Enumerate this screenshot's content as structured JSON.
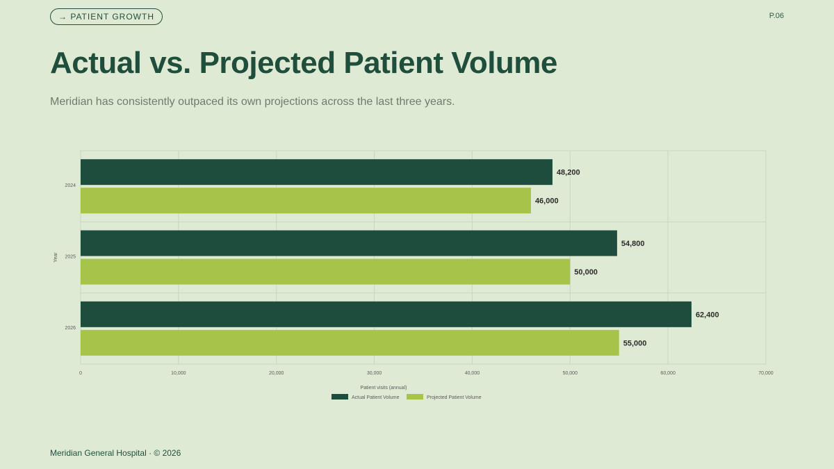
{
  "header": {
    "section_tag": "→ PATIENT GROWTH",
    "page_number": "P.06",
    "title": "Actual vs. Projected Patient Volume",
    "subtitle": "Meridian has consistently outpaced its own projections across the last three years."
  },
  "footer": {
    "text": "Meridian General Hospital · © 2026"
  },
  "colors": {
    "actual": "#1e4d3d",
    "projected": "#a6c44a",
    "grid": "#c9d6bf",
    "axis_text": "#5a5a5a",
    "label_text": "#2b2b2b"
  },
  "chart_data": {
    "type": "bar",
    "orientation": "horizontal",
    "categories": [
      "2024",
      "2025",
      "2026"
    ],
    "series": [
      {
        "name": "Actual Patient Volume",
        "values": [
          48200,
          54800,
          62400
        ],
        "labels": [
          "48,200",
          "54,800",
          "62,400"
        ]
      },
      {
        "name": "Projected Patient Volume",
        "values": [
          46000,
          50000,
          55000
        ],
        "labels": [
          "46,000",
          "50,000",
          "55,000"
        ]
      }
    ],
    "xlabel": "Patient visits (annual)",
    "ylabel": "Year",
    "xlim": [
      0,
      70000
    ],
    "xticks": [
      0,
      10000,
      20000,
      30000,
      40000,
      50000,
      60000,
      70000
    ],
    "xtick_labels": [
      "0",
      "10,000",
      "20,000",
      "30,000",
      "40,000",
      "50,000",
      "60,000",
      "70,000"
    ],
    "grid": true,
    "legend_position": "bottom"
  }
}
